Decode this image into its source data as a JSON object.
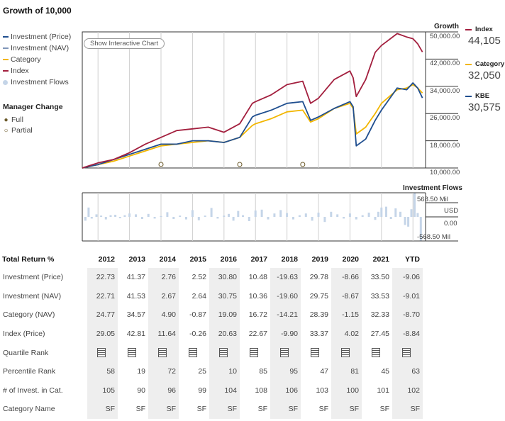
{
  "title": "Growth of 10,000",
  "legend": [
    {
      "label": "Investment (Price)",
      "color": "#1f4e8f",
      "kind": "line"
    },
    {
      "label": "Investment (NAV)",
      "color": "#7f95b8",
      "kind": "line"
    },
    {
      "label": "Category",
      "color": "#f2b600",
      "kind": "line"
    },
    {
      "label": "Index",
      "color": "#a31f3e",
      "kind": "line"
    },
    {
      "label": "Investment Flows",
      "color": "#c5d5e8",
      "kind": "dot"
    }
  ],
  "manager_change": {
    "title": "Manager Change",
    "full": "Full",
    "partial": "Partial"
  },
  "show_chart_button": "Show Interactive Chart",
  "growth_axis": {
    "title": "Growth",
    "ticks": [
      "50,000.00",
      "42,000.00",
      "34,000.00",
      "26,000.00",
      "18,000.00",
      "10,000.00"
    ]
  },
  "flows_axis": {
    "title": "Investment Flows",
    "ticks": [
      "568.50 Mil",
      "USD",
      "0.00",
      "-568.50 Mil"
    ]
  },
  "end_values": [
    {
      "label": "Index",
      "value": "44,105",
      "color": "#a31f3e"
    },
    {
      "label": "Category",
      "value": "32,050",
      "color": "#f2b600"
    },
    {
      "label": "KBE",
      "value": "30,575",
      "color": "#1f4e8f"
    }
  ],
  "colors": {
    "price": "#1f4e8f",
    "nav": "#7f95b8",
    "category": "#f2b600",
    "index": "#a31f3e",
    "flows": "#c5d5e8",
    "grid": "#cfcfcf"
  },
  "chart_data": [
    {
      "type": "line",
      "title": "Growth of 10,000",
      "ylabel": "Growth",
      "ylim": [
        10000,
        50000
      ],
      "yticks": [
        10000,
        18000,
        26000,
        34000,
        42000,
        50000
      ],
      "x": [
        2011.5,
        2012.0,
        2012.5,
        2013.0,
        2013.5,
        2014.0,
        2014.5,
        2015.0,
        2015.5,
        2016.0,
        2016.5,
        2016.9,
        2017.0,
        2017.5,
        2018.0,
        2018.5,
        2018.75,
        2019.0,
        2019.5,
        2020.0,
        2020.1,
        2020.2,
        2020.5,
        2020.8,
        2021.0,
        2021.5,
        2021.8,
        2022.0,
        2022.15,
        2022.3
      ],
      "series": [
        {
          "name": "Index",
          "values": [
            10000,
            11500,
            12500,
            14500,
            17000,
            19000,
            21000,
            21500,
            22000,
            20500,
            23000,
            29000,
            29500,
            31500,
            34500,
            35500,
            29000,
            30500,
            36000,
            38500,
            36500,
            31000,
            36000,
            44000,
            46000,
            49500,
            48500,
            48000,
            46500,
            44105
          ]
        },
        {
          "name": "KBE",
          "values": [
            10000,
            11000,
            12500,
            14000,
            15500,
            17000,
            17000,
            18000,
            18000,
            17500,
            19000,
            25000,
            25500,
            27000,
            29000,
            29500,
            24000,
            25000,
            27500,
            29500,
            28000,
            16500,
            18500,
            24000,
            27000,
            33500,
            33000,
            35000,
            33500,
            30575
          ]
        },
        {
          "name": "Category",
          "values": [
            10000,
            11000,
            12000,
            13500,
            15000,
            16500,
            17000,
            17500,
            18000,
            17500,
            19000,
            22500,
            23000,
            24500,
            26500,
            27000,
            23500,
            24500,
            27500,
            29000,
            27500,
            20000,
            22000,
            26000,
            29000,
            33000,
            33500,
            34500,
            33500,
            32050
          ]
        }
      ],
      "manager_changes": {
        "partial": [
          2014.0,
          2016.5,
          2018.5
        ],
        "full": []
      }
    },
    {
      "type": "bar",
      "title": "Investment Flows",
      "ylabel": "USD",
      "ylim": [
        -568.5,
        568.5
      ],
      "x": [
        2011.6,
        2011.7,
        2011.8,
        2011.95,
        2012.1,
        2012.25,
        2012.4,
        2012.55,
        2012.7,
        2012.85,
        2013.0,
        2013.2,
        2013.4,
        2013.6,
        2013.8,
        2014.0,
        2014.2,
        2014.4,
        2014.6,
        2014.8,
        2015.0,
        2015.2,
        2015.4,
        2015.6,
        2015.8,
        2016.0,
        2016.15,
        2016.3,
        2016.45,
        2016.6,
        2016.8,
        2017.0,
        2017.2,
        2017.4,
        2017.6,
        2017.8,
        2018.0,
        2018.2,
        2018.4,
        2018.6,
        2018.8,
        2019.0,
        2019.2,
        2019.4,
        2019.6,
        2019.8,
        2020.0,
        2020.2,
        2020.4,
        2020.6,
        2020.8,
        2020.9,
        2021.0,
        2021.15,
        2021.3,
        2021.45,
        2021.6,
        2021.75,
        2021.85,
        2021.95,
        2022.05,
        2022.15,
        2022.25
      ],
      "values": [
        -90,
        220,
        -40,
        60,
        30,
        -60,
        40,
        50,
        -30,
        40,
        80,
        60,
        -50,
        70,
        -40,
        20,
        110,
        -50,
        30,
        -60,
        160,
        -80,
        30,
        210,
        -40,
        30,
        70,
        -90,
        140,
        40,
        -100,
        150,
        170,
        -60,
        80,
        160,
        90,
        -60,
        40,
        80,
        -90,
        100,
        -120,
        120,
        60,
        -40,
        80,
        -60,
        40,
        100,
        -70,
        120,
        220,
        240,
        -50,
        200,
        120,
        -190,
        -230,
        180,
        560,
        90,
        -560
      ]
    }
  ],
  "returns_table": {
    "header": "Total Return %",
    "years": [
      "2012",
      "2013",
      "2014",
      "2015",
      "2016",
      "2017",
      "2018",
      "2019",
      "2020",
      "2021",
      "YTD"
    ],
    "rows": [
      {
        "label": "Investment (Price)",
        "values": [
          "22.73",
          "41.37",
          "2.76",
          "2.52",
          "30.80",
          "10.48",
          "-19.63",
          "29.78",
          "-8.66",
          "33.50",
          "-9.06"
        ]
      },
      {
        "label": "Investment (NAV)",
        "values": [
          "22.71",
          "41.53",
          "2.67",
          "2.64",
          "30.75",
          "10.36",
          "-19.60",
          "29.75",
          "-8.67",
          "33.53",
          "-9.01"
        ]
      },
      {
        "label": "Category (NAV)",
        "values": [
          "24.77",
          "34.57",
          "4.90",
          "-0.87",
          "19.09",
          "16.72",
          "-14.21",
          "28.39",
          "-1.15",
          "32.33",
          "-8.70"
        ]
      },
      {
        "label": "Index (Price)",
        "values": [
          "29.05",
          "42.81",
          "11.64",
          "-0.26",
          "20.63",
          "22.67",
          "-9.90",
          "33.37",
          "4.02",
          "27.45",
          "-8.84"
        ]
      },
      {
        "label": "Quartile Rank",
        "icons": true
      },
      {
        "label": "Percentile Rank",
        "values": [
          "58",
          "19",
          "72",
          "25",
          "10",
          "85",
          "95",
          "47",
          "81",
          "45",
          "63"
        ]
      },
      {
        "label": "# of Invest. in Cat.",
        "values": [
          "105",
          "90",
          "96",
          "99",
          "104",
          "108",
          "106",
          "103",
          "100",
          "101",
          "102"
        ]
      },
      {
        "label": "Category Name",
        "values": [
          "SF",
          "SF",
          "SF",
          "SF",
          "SF",
          "SF",
          "SF",
          "SF",
          "SF",
          "SF",
          "SF"
        ]
      }
    ]
  }
}
